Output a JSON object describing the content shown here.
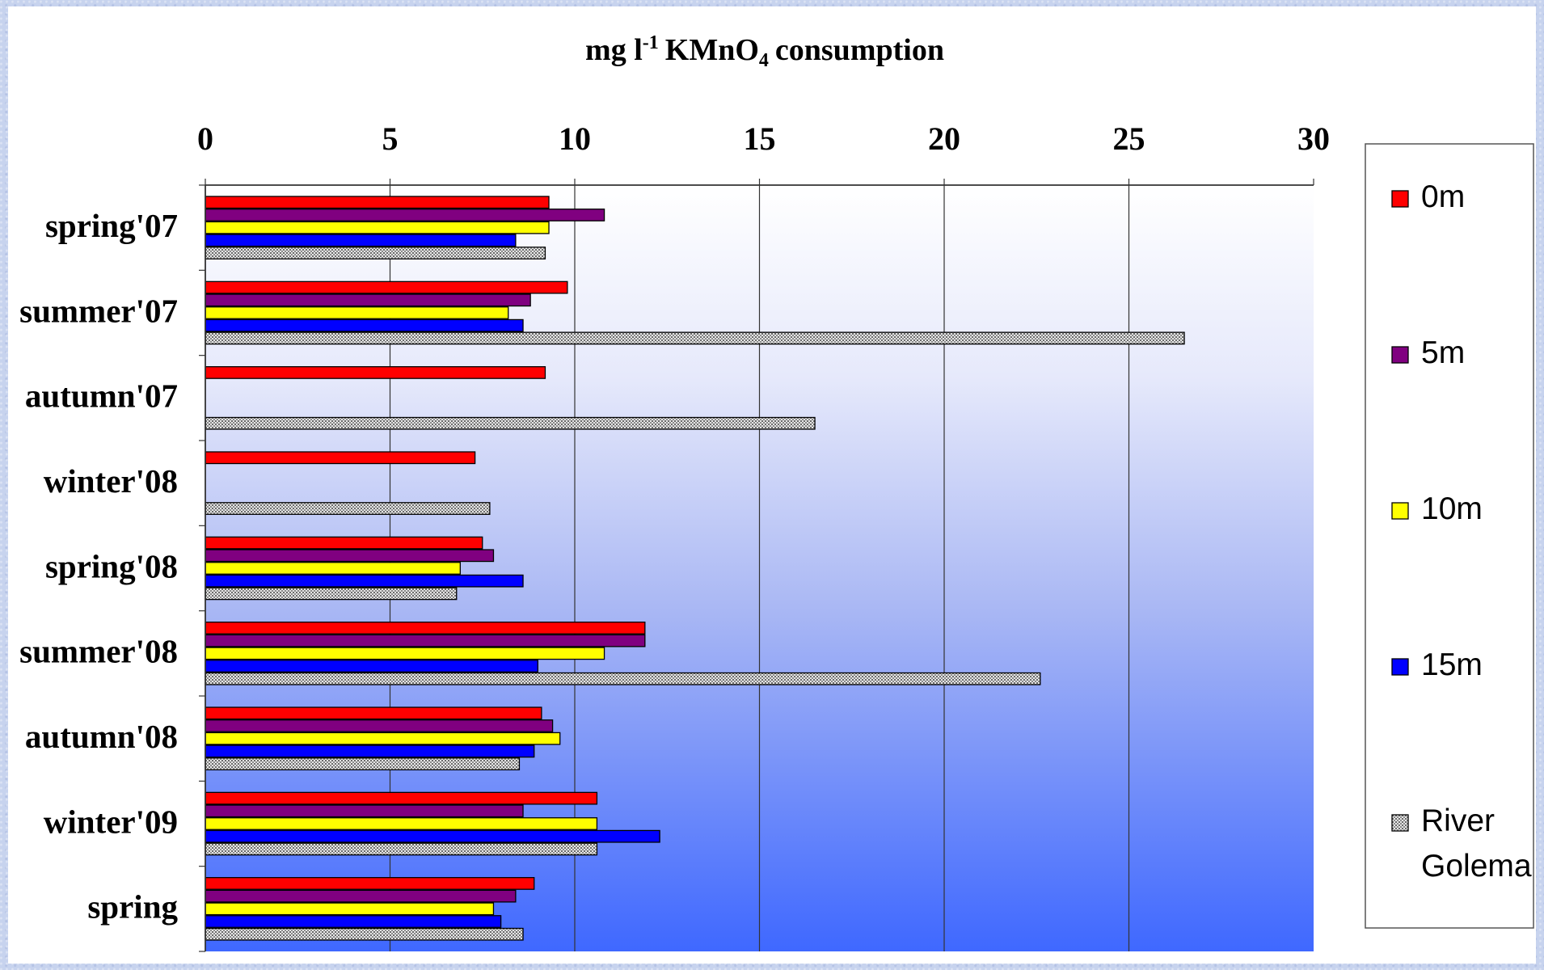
{
  "chart_data": {
    "type": "bar",
    "orientation": "horizontal",
    "title": "consumption",
    "title_parts": {
      "unit_prefix": "mg l",
      "superscript": "-1",
      "compound_main": "KMnO",
      "subscript": "4"
    },
    "xlabel": "",
    "ylabel": "",
    "xlim": [
      0,
      30
    ],
    "x_ticks": [
      "0",
      "5",
      "10",
      "15",
      "20",
      "25",
      "30"
    ],
    "grid": "vertical",
    "legend_position": "right",
    "categories": [
      "spring'07",
      "summer'07",
      "autumn'07",
      "winter'08",
      "spring'08",
      "summer'08",
      "autumn'08",
      "winter'09",
      "spring"
    ],
    "series": [
      {
        "name": "0m",
        "color": "#ff0000",
        "pattern": "solid",
        "values": [
          9.3,
          9.8,
          9.2,
          7.3,
          7.5,
          11.9,
          9.1,
          10.6,
          8.9
        ]
      },
      {
        "name": "5m",
        "color": "#800080",
        "pattern": "solid",
        "values": [
          10.8,
          8.8,
          null,
          null,
          7.8,
          11.9,
          9.4,
          8.6,
          8.4
        ]
      },
      {
        "name": "10m",
        "color": "#ffff00",
        "pattern": "solid",
        "values": [
          9.3,
          8.2,
          null,
          null,
          6.9,
          10.8,
          9.6,
          10.6,
          7.8
        ]
      },
      {
        "name": "15m",
        "color": "#0000ff",
        "pattern": "solid",
        "values": [
          8.4,
          8.6,
          null,
          null,
          8.6,
          9.0,
          8.9,
          12.3,
          8.0
        ]
      },
      {
        "name": "River Golema",
        "color": "#a0a0a0",
        "pattern": "dotted",
        "values": [
          9.2,
          26.5,
          16.5,
          7.7,
          6.8,
          22.6,
          8.5,
          10.6,
          8.6
        ]
      }
    ]
  }
}
